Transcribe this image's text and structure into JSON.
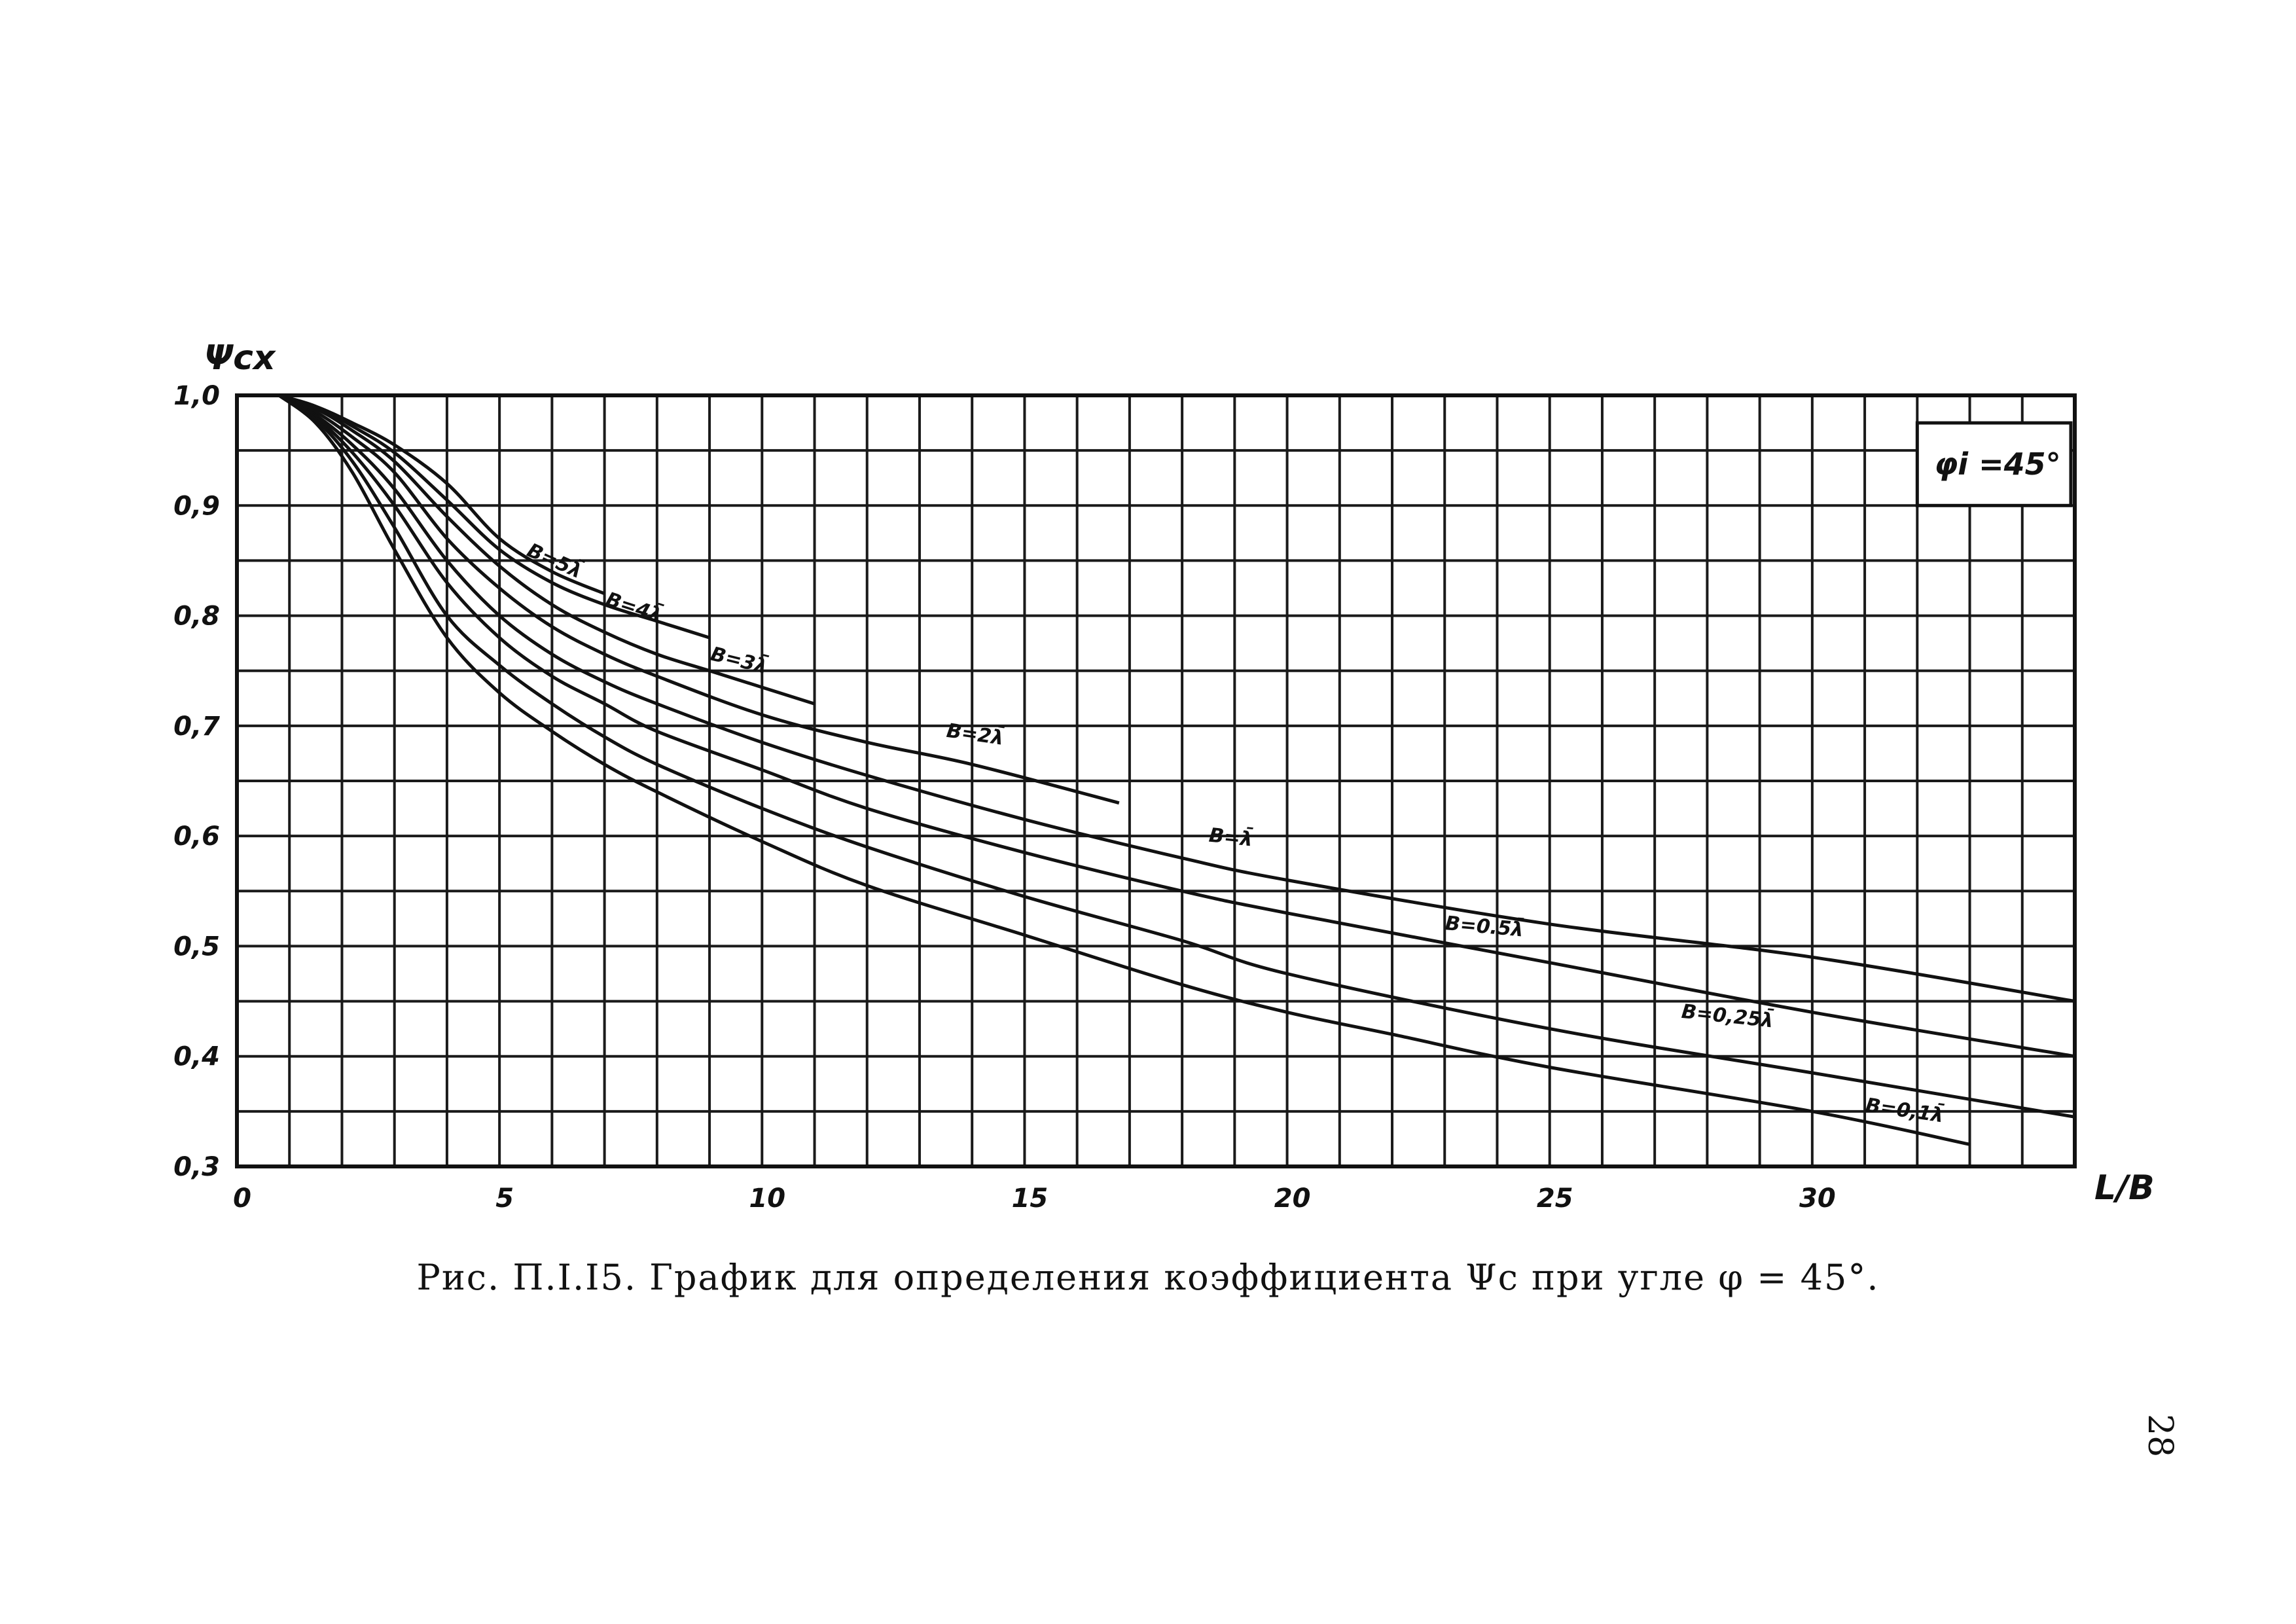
{
  "chart_data": {
    "type": "line",
    "title": "",
    "xlabel": "L/B",
    "ylabel": "Ψcx",
    "xlim": [
      0,
      35
    ],
    "ylim": [
      0.3,
      1.0
    ],
    "x_ticks": [
      {
        "value": 0,
        "label": "0"
      },
      {
        "value": 5,
        "label": "5"
      },
      {
        "value": 10,
        "label": "10"
      },
      {
        "value": 15,
        "label": "15"
      },
      {
        "value": 20,
        "label": "20"
      },
      {
        "value": 25,
        "label": "25"
      },
      {
        "value": 30,
        "label": "30"
      }
    ],
    "y_ticks": [
      {
        "value": 0.3,
        "label": "0,3"
      },
      {
        "value": 0.4,
        "label": "0,4"
      },
      {
        "value": 0.5,
        "label": "0,5"
      },
      {
        "value": 0.6,
        "label": "0,6"
      },
      {
        "value": 0.7,
        "label": "0,7"
      },
      {
        "value": 0.8,
        "label": "0,8"
      },
      {
        "value": 0.9,
        "label": "0,9"
      },
      {
        "value": 1.0,
        "label": "1,0"
      }
    ],
    "grid": true,
    "grid_x_step": 1,
    "grid_y_step": 0.05,
    "legend_box": {
      "text": "φi =45°",
      "placement": "top-right"
    },
    "series": [
      {
        "name": "B=5λ̄",
        "x": [
          0.8,
          1.5,
          2.2,
          3.0,
          4.0,
          5.0,
          6.0,
          7.0
        ],
        "y": [
          1.0,
          0.99,
          0.975,
          0.955,
          0.92,
          0.87,
          0.84,
          0.82
        ]
      },
      {
        "name": "B=4λ̄",
        "x": [
          0.8,
          1.5,
          2.2,
          3.0,
          4.0,
          5.0,
          6.0,
          7.0,
          8.0,
          9.0
        ],
        "y": [
          1.0,
          0.99,
          0.972,
          0.948,
          0.905,
          0.86,
          0.83,
          0.81,
          0.795,
          0.78
        ]
      },
      {
        "name": "B=3λ̄",
        "x": [
          0.8,
          1.5,
          2.2,
          3.0,
          4.0,
          5.0,
          6.0,
          7.0,
          8.0,
          9.0,
          10.0,
          11.0
        ],
        "y": [
          1.0,
          0.988,
          0.968,
          0.94,
          0.89,
          0.845,
          0.81,
          0.785,
          0.765,
          0.75,
          0.735,
          0.72
        ]
      },
      {
        "name": "B=2λ̄",
        "x": [
          0.8,
          1.5,
          2.2,
          3.0,
          4.0,
          5.0,
          6.0,
          7.0,
          8.0,
          10.0,
          12.0,
          14.0,
          16.8
        ],
        "y": [
          1.0,
          0.985,
          0.962,
          0.93,
          0.87,
          0.825,
          0.79,
          0.765,
          0.745,
          0.71,
          0.685,
          0.665,
          0.63
        ]
      },
      {
        "name": "B=λ̄",
        "x": [
          0.8,
          1.5,
          2.2,
          3.0,
          4.0,
          5.0,
          6.0,
          7.0,
          8.0,
          10.0,
          12.0,
          15.0,
          18.0,
          20.0,
          25.0,
          30.0,
          35.0
        ],
        "y": [
          1.0,
          0.982,
          0.955,
          0.915,
          0.85,
          0.8,
          0.765,
          0.74,
          0.72,
          0.685,
          0.655,
          0.615,
          0.58,
          0.56,
          0.52,
          0.49,
          0.45
        ]
      },
      {
        "name": "B=0.5λ̄",
        "x": [
          0.8,
          1.5,
          2.2,
          3.0,
          4.0,
          5.0,
          6.0,
          7.0,
          8.0,
          10.0,
          12.0,
          15.0,
          18.0,
          20.0,
          25.0,
          30.0,
          35.0
        ],
        "y": [
          1.0,
          0.98,
          0.948,
          0.9,
          0.83,
          0.78,
          0.745,
          0.72,
          0.695,
          0.66,
          0.625,
          0.585,
          0.55,
          0.53,
          0.485,
          0.44,
          0.4
        ]
      },
      {
        "name": "B=0,25λ̄",
        "x": [
          0.8,
          1.5,
          2.2,
          3.0,
          4.0,
          5.0,
          6.0,
          7.0,
          8.0,
          10.0,
          12.0,
          15.0,
          18.0,
          20.0,
          25.0,
          30.0,
          35.0
        ],
        "y": [
          1.0,
          0.978,
          0.94,
          0.88,
          0.8,
          0.755,
          0.72,
          0.69,
          0.665,
          0.625,
          0.59,
          0.545,
          0.505,
          0.475,
          0.425,
          0.385,
          0.345
        ]
      },
      {
        "name": "B=0,1λ̄",
        "x": [
          0.8,
          1.5,
          2.2,
          3.0,
          4.0,
          5.0,
          6.0,
          7.0,
          8.0,
          10.0,
          12.0,
          15.0,
          18.0,
          20.0,
          22.0,
          25.0,
          30.0,
          33.0
        ],
        "y": [
          1.0,
          0.975,
          0.93,
          0.86,
          0.78,
          0.73,
          0.695,
          0.665,
          0.64,
          0.595,
          0.555,
          0.51,
          0.465,
          0.44,
          0.42,
          0.39,
          0.35,
          0.32
        ]
      }
    ],
    "curve_labels": [
      {
        "text": "B=5λ̄",
        "x": 5.5,
        "y": 0.855,
        "angle": 24
      },
      {
        "text": "B=4λ̄",
        "x": 7.0,
        "y": 0.81,
        "angle": 18
      },
      {
        "text": "B=3λ̄",
        "x": 9.0,
        "y": 0.76,
        "angle": 14
      },
      {
        "text": "B=2λ̄",
        "x": 13.5,
        "y": 0.69,
        "angle": 8
      },
      {
        "text": "B=λ̄",
        "x": 18.5,
        "y": 0.595,
        "angle": 6
      },
      {
        "text": "B=0.5λ̄",
        "x": 23.0,
        "y": 0.515,
        "angle": 5
      },
      {
        "text": "B=0,25λ̄",
        "x": 27.5,
        "y": 0.435,
        "angle": 6
      },
      {
        "text": "B=0,1λ̄",
        "x": 31.0,
        "y": 0.35,
        "angle": 8
      }
    ]
  },
  "caption": "Рис. П.I.I5. График для определения коэффициента Ψc при угле  φ = 45°.",
  "page_number": "28"
}
